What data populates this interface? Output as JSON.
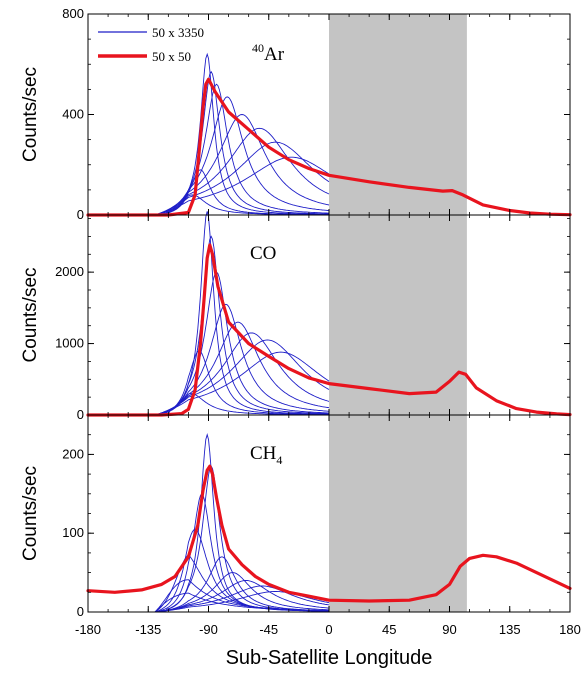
{
  "chart_data": {
    "type": "line",
    "xlabel": "Sub-Satellite Longitude",
    "xlim": [
      -180,
      180
    ],
    "xticks": [
      -180,
      -135,
      -90,
      -45,
      0,
      45,
      90,
      135,
      180
    ],
    "shaded_region": [
      0,
      103
    ],
    "colors": {
      "fine": "#1f1fc8",
      "coarse": "#e8141e",
      "shade": "#c4c4c4"
    },
    "legend": {
      "placement": "top-left of first panel",
      "entries": [
        {
          "label": "50 x 3350",
          "color": "#1f1fc8"
        },
        {
          "label": "50 x 50",
          "color": "#e8141e"
        }
      ]
    },
    "panels": [
      {
        "title_sup": "40",
        "title_main": "Ar",
        "ylabel": "Counts/sec",
        "ylim": [
          0,
          800
        ],
        "yticks": [
          0,
          400,
          800
        ],
        "coarse_series": {
          "name": "50 x 50",
          "x": [
            -180,
            -120,
            -105,
            -100,
            -97,
            -94,
            -92,
            -90,
            -85,
            -75,
            -60,
            -45,
            -30,
            -15,
            0,
            30,
            60,
            85,
            92,
            100,
            115,
            135,
            150,
            165,
            180
          ],
          "y": [
            0,
            0,
            10,
            80,
            250,
            430,
            520,
            540,
            490,
            410,
            340,
            270,
            220,
            185,
            158,
            132,
            110,
            95,
            97,
            80,
            40,
            18,
            8,
            3,
            1
          ]
        },
        "fine_peaks": [
          {
            "center": -91,
            "amp": 640
          },
          {
            "center": -88,
            "amp": 570
          },
          {
            "center": -84,
            "amp": 520
          },
          {
            "center": -76,
            "amp": 470
          },
          {
            "center": -65,
            "amp": 400
          },
          {
            "center": -52,
            "amp": 345
          },
          {
            "center": -40,
            "amp": 290
          },
          {
            "center": -28,
            "amp": 230
          },
          {
            "center": -96,
            "amp": 180
          },
          {
            "center": -102,
            "amp": 80
          }
        ],
        "fine_peak_x": [
          -93,
          -91,
          -86,
          -81,
          -73,
          -62,
          -50
        ],
        "fine_peak_y": [
          580,
          640,
          590,
          530,
          470,
          410,
          370
        ]
      },
      {
        "title_main": "CO",
        "ylabel": "Counts/sec",
        "ylim": [
          0,
          2800
        ],
        "yticks": [
          0,
          1000,
          2000
        ],
        "coarse_series": {
          "name": "50 x 50",
          "x": [
            -180,
            -125,
            -110,
            -105,
            -100,
            -96,
            -93,
            -91,
            -89,
            -87,
            -83,
            -75,
            -60,
            -45,
            -30,
            -15,
            0,
            30,
            60,
            80,
            90,
            97,
            102,
            110,
            125,
            140,
            155,
            170,
            180
          ],
          "y": [
            0,
            0,
            20,
            80,
            350,
            1000,
            1700,
            2200,
            2380,
            2250,
            1800,
            1300,
            1000,
            820,
            650,
            520,
            440,
            370,
            300,
            320,
            470,
            600,
            570,
            380,
            200,
            90,
            40,
            15,
            5
          ]
        },
        "fine_peaks": [
          {
            "center": -91,
            "amp": 2850
          },
          {
            "center": -88,
            "amp": 2500
          },
          {
            "center": -84,
            "amp": 2000
          },
          {
            "center": -77,
            "amp": 1550
          },
          {
            "center": -68,
            "amp": 1300
          },
          {
            "center": -58,
            "amp": 1150
          },
          {
            "center": -46,
            "amp": 1050
          },
          {
            "center": -36,
            "amp": 880
          },
          {
            "center": -97,
            "amp": 900
          },
          {
            "center": -103,
            "amp": 300
          }
        ],
        "fine_peak_x": [
          -91,
          -88,
          -83,
          -77,
          -68,
          -58,
          -47,
          -36
        ],
        "fine_peak_y": [
          2850,
          2500,
          2000,
          1550,
          1300,
          1150,
          1050,
          880
        ]
      },
      {
        "title_main": "CH",
        "title_sub": "4",
        "ylabel": "Counts/sec",
        "ylim": [
          0,
          250
        ],
        "yticks": [
          0,
          100,
          200
        ],
        "coarse_series": {
          "name": "50 x 50",
          "x": [
            -180,
            -160,
            -140,
            -125,
            -115,
            -105,
            -98,
            -94,
            -91,
            -89,
            -87,
            -84,
            -80,
            -75,
            -65,
            -55,
            -45,
            -30,
            -15,
            0,
            30,
            60,
            80,
            90,
            98,
            105,
            115,
            125,
            140,
            155,
            170,
            180
          ],
          "y": [
            27,
            25,
            28,
            35,
            45,
            70,
            110,
            155,
            180,
            185,
            175,
            145,
            110,
            80,
            60,
            45,
            35,
            25,
            20,
            15,
            14,
            15,
            22,
            35,
            58,
            68,
            72,
            70,
            62,
            50,
            38,
            30
          ]
        },
        "fine_peaks": [
          {
            "center": -91,
            "amp": 225
          },
          {
            "center": -88,
            "amp": 185
          },
          {
            "center": -95,
            "amp": 150
          },
          {
            "center": -100,
            "amp": 105
          },
          {
            "center": -108,
            "amp": 75
          },
          {
            "center": -118,
            "amp": 55
          },
          {
            "center": -128,
            "amp": 40
          },
          {
            "center": -80,
            "amp": 70
          },
          {
            "center": -72,
            "amp": 50
          },
          {
            "center": -62,
            "amp": 40
          },
          {
            "center": -50,
            "amp": 33
          },
          {
            "center": -40,
            "amp": 26
          }
        ],
        "fine_peak_x": [
          -91,
          -88,
          -95,
          -100
        ],
        "fine_peak_y": [
          225,
          185,
          150,
          105
        ]
      }
    ]
  }
}
